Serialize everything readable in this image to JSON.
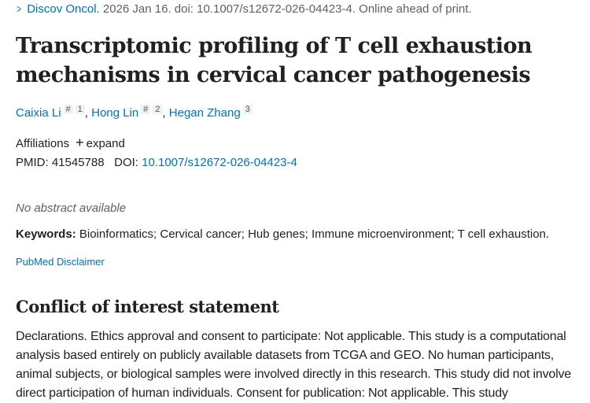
{
  "citation": {
    "journal": "Discov Oncol.",
    "rest": " 2026 Jan 16. doi: 10.1007/s12672-026-04423-4. Online ahead of print."
  },
  "title": "Transcriptomic profiling of T cell exhaustion mechanisms in cervical cancer pathogenesis",
  "authors": [
    {
      "name": "Caixia Li",
      "marks": [
        "#",
        "1"
      ]
    },
    {
      "name": "Hong Lin",
      "marks": [
        "#",
        "2"
      ]
    },
    {
      "name": "Hegan Zhang",
      "marks": [
        "3"
      ]
    }
  ],
  "affiliations": {
    "label": "Affiliations",
    "expand": "expand"
  },
  "ids": {
    "pmid_label": "PMID:",
    "pmid": "41545788",
    "doi_label": "DOI:",
    "doi": "10.1007/s12672-026-04423-4"
  },
  "no_abstract": "No abstract available",
  "keywords": {
    "label": "Keywords:",
    "text": " Bioinformatics; Cervical cancer; Hub genes; Immune microenvironment; T cell exhaustion."
  },
  "disclaimer": "PubMed Disclaimer",
  "coi": {
    "heading": "Conflict of interest statement",
    "text": "Declarations. Ethics approval and consent to participate: Not applicable. This study is a computational analysis based entirely on publicly available datasets from TCGA and GEO. No human participants, animal subjects, or biological samples were involved directly in this research. This study did not involve direct participation of human individuals. Consent for publication: Not applicable. This study"
  }
}
